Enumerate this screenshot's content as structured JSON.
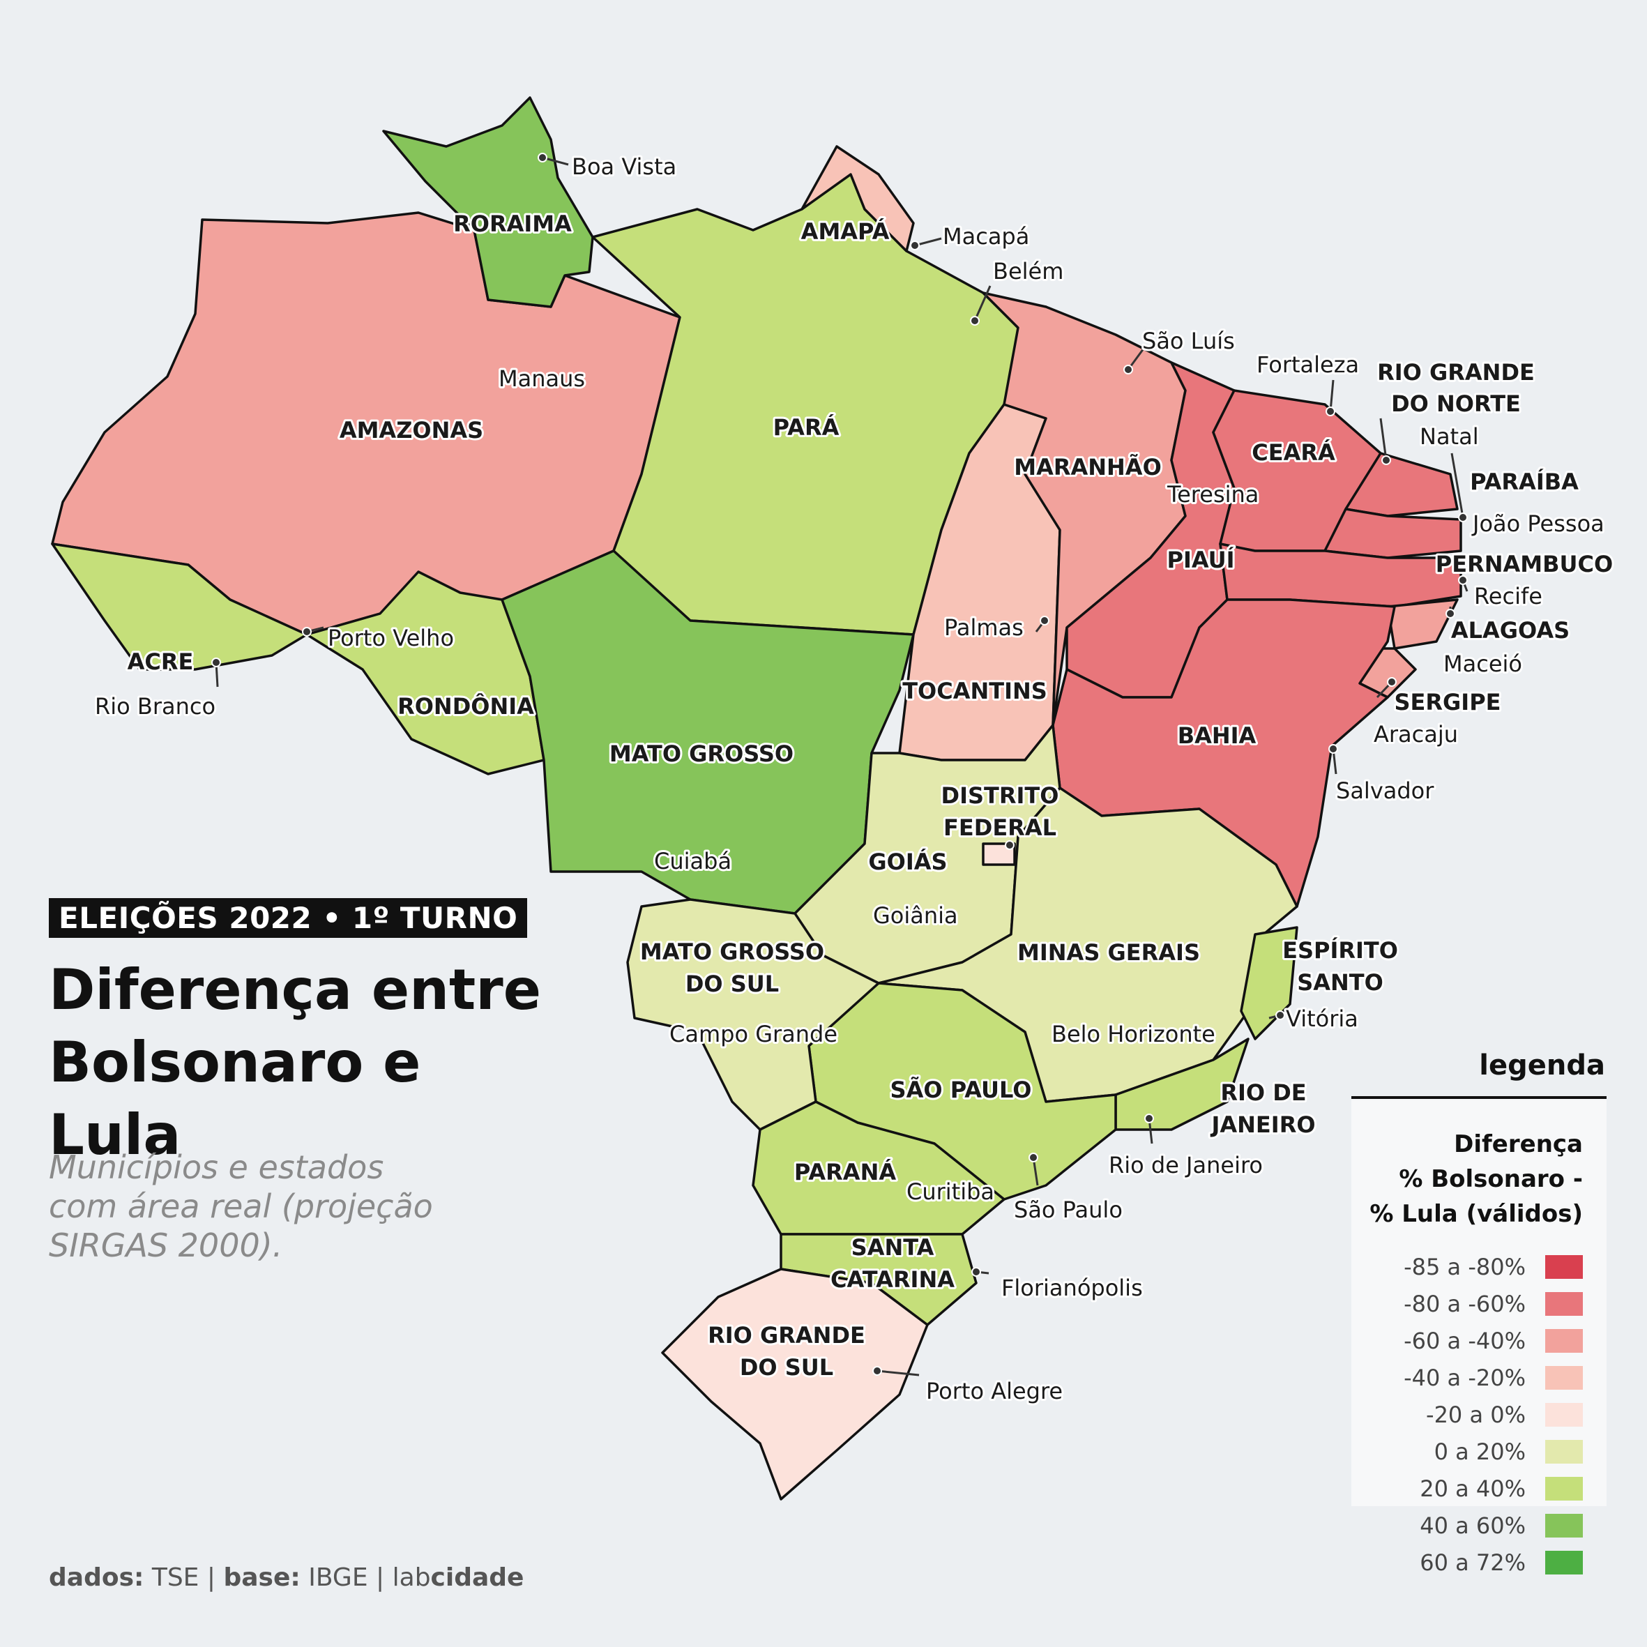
{
  "header": {
    "badge": "ELEIÇÕES 2022 • 1º TURNO",
    "title_line1": "Diferença entre",
    "title_line2": "Bolsonaro e Lula",
    "subtitle_line1": "Municípios e estados",
    "subtitle_line2": "com área real (projeção",
    "subtitle_line3": "SIRGAS 2000)."
  },
  "credits": {
    "data_label": "dados:",
    "data_value": "TSE",
    "sep1": "|",
    "base_label": "base:",
    "base_value": "IBGE",
    "sep2": "|",
    "brand_light": "lab",
    "brand_bold": "cidade"
  },
  "legend": {
    "title": "legenda",
    "sub_line1": "Diferença",
    "sub_line2": "% Bolsonaro -",
    "sub_line3": "% Lula (válidos)",
    "items": [
      {
        "label": "-85 a -80%",
        "color": "#d9404f"
      },
      {
        "label": "-80 a -60%",
        "color": "#e8767b"
      },
      {
        "label": "-60 a -40%",
        "color": "#f2a29c"
      },
      {
        "label": "-40 a -20%",
        "color": "#f8c3b7"
      },
      {
        "label": "-20 a 0%",
        "color": "#fce2db"
      },
      {
        "label": "0 a 20%",
        "color": "#e3e9ad"
      },
      {
        "label": "20 a 40%",
        "color": "#c5df7a"
      },
      {
        "label": "40 a 60%",
        "color": "#86c45a"
      },
      {
        "label": "60 a 72%",
        "color": "#4daf43"
      }
    ]
  },
  "states": {
    "roraima": "RORAIMA",
    "amapa": "AMAPÁ",
    "amazonas": "AMAZONAS",
    "para": "PARÁ",
    "maranhao": "MARANHÃO",
    "ceara": "CEARÁ",
    "rn_line1": "RIO GRANDE",
    "rn_line2": "DO NORTE",
    "paraiba": "PARAÍBA",
    "pernambuco": "PERNAMBUCO",
    "alagoas": "ALAGOAS",
    "sergipe": "SERGIPE",
    "piaui": "PIAUÍ",
    "bahia": "BAHIA",
    "tocantins": "TOCANTINS",
    "acre": "ACRE",
    "rondonia": "RONDÔNIA",
    "mato_grosso": "MATO GROSSO",
    "df_line1": "DISTRITO",
    "df_line2": "FEDERAL",
    "goias": "GOIÁS",
    "ms_line1": "MATO GROSSO",
    "ms_line2": "DO SUL",
    "minas": "MINAS GERAIS",
    "es_line1": "ESPÍRITO",
    "es_line2": "SANTO",
    "rj_line1": "RIO DE",
    "rj_line2": "JANEIRO",
    "sao_paulo": "SÃO PAULO",
    "parana": "PARANÁ",
    "sc_line1": "SANTA",
    "sc_line2": "CATARINA",
    "rs_line1": "RIO GRANDE",
    "rs_line2": "DO SUL"
  },
  "cities": {
    "boa_vista": "Boa Vista",
    "macapa": "Macapá",
    "belem": "Belém",
    "sao_luis": "São Luís",
    "fortaleza": "Fortaleza",
    "natal": "Natal",
    "joao_pessoa": "João Pessoa",
    "recife": "Recife",
    "maceio": "Maceió",
    "aracaju": "Aracaju",
    "salvador": "Salvador",
    "manaus": "Manaus",
    "teresina": "Teresina",
    "palmas": "Palmas",
    "porto_velho": "Porto Velho",
    "rio_branco": "Rio Branco",
    "cuiaba": "Cuiabá",
    "goiania": "Goiânia",
    "campo_grande": "Campo Grande",
    "belo_horizonte": "Belo Horizonte",
    "vitoria": "Vitória",
    "rio_de_janeiro": "Rio de Janeiro",
    "sao_paulo": "São Paulo",
    "curitiba": "Curitiba",
    "florianopolis": "Florianópolis",
    "porto_alegre": "Porto Alegre"
  }
}
